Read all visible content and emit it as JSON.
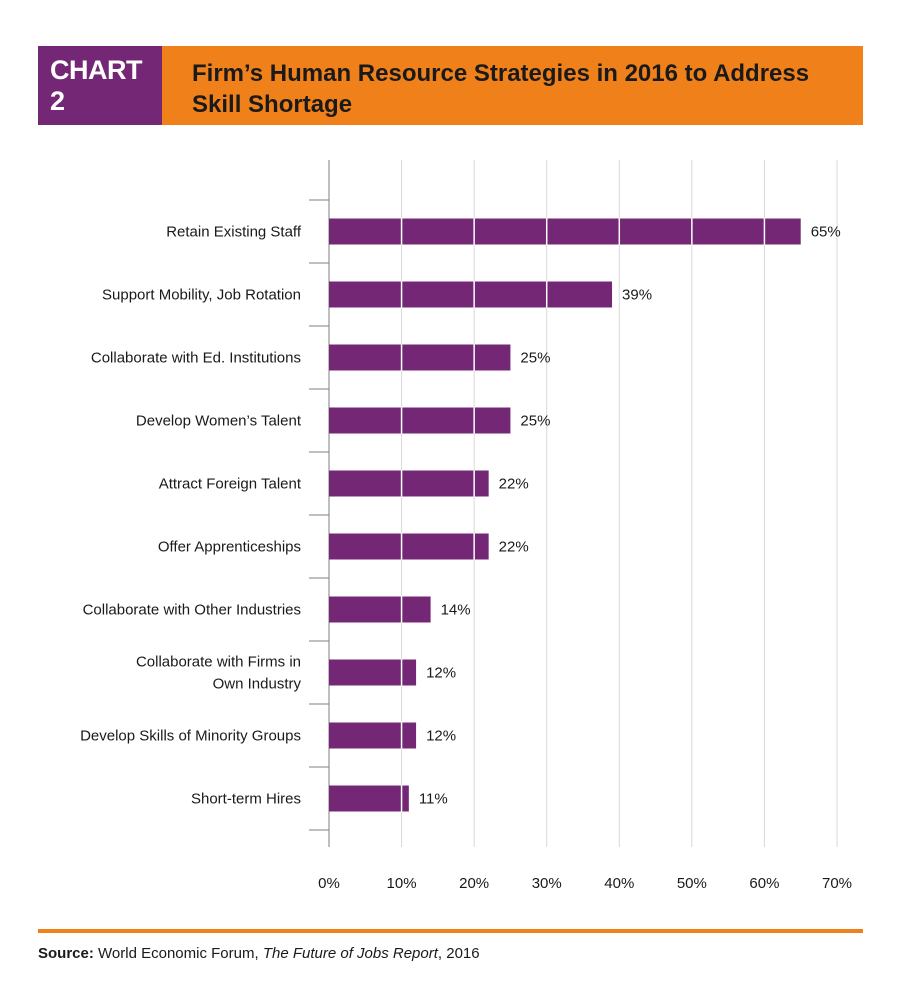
{
  "header": {
    "badge": "CHART 2",
    "title": "Firm’s Human Resource Strategies in 2016 to Address Skill Shortage"
  },
  "colors": {
    "badge_bg": "#742774",
    "title_bg": "#f08019",
    "bar": "#742774",
    "grid": "#d9d9d9",
    "axis": "#7f7f7f"
  },
  "chart_data": {
    "type": "bar",
    "orientation": "horizontal",
    "title": "Firm’s Human Resource Strategies in 2016 to Address Skill Shortage",
    "xlabel": "",
    "ylabel": "",
    "xlim": [
      0,
      70
    ],
    "xticks": [
      0,
      10,
      20,
      30,
      40,
      50,
      60,
      70
    ],
    "tick_suffix": "%",
    "grid": true,
    "categories": [
      [
        "Retain Existing Staff"
      ],
      [
        "Support Mobility, Job Rotation"
      ],
      [
        "Collaborate with Ed. Institutions"
      ],
      [
        "Develop Women’s Talent"
      ],
      [
        "Attract Foreign Talent"
      ],
      [
        "Offer Apprenticeships"
      ],
      [
        "Collaborate with Other Industries"
      ],
      [
        "Collaborate with Firms in",
        "Own Industry"
      ],
      [
        "Develop Skills of Minority Groups"
      ],
      [
        "Short-term Hires"
      ]
    ],
    "values": [
      65,
      39,
      25,
      25,
      22,
      22,
      14,
      12,
      12,
      11
    ],
    "data_labels": [
      "65%",
      "39%",
      "25%",
      "25%",
      "22%",
      "22%",
      "14%",
      "12%",
      "12%",
      "11%"
    ]
  },
  "source": {
    "label": "Source:",
    "org": "World Economic Forum,",
    "report": "The Future of Jobs Report",
    "year": ", 2016"
  }
}
